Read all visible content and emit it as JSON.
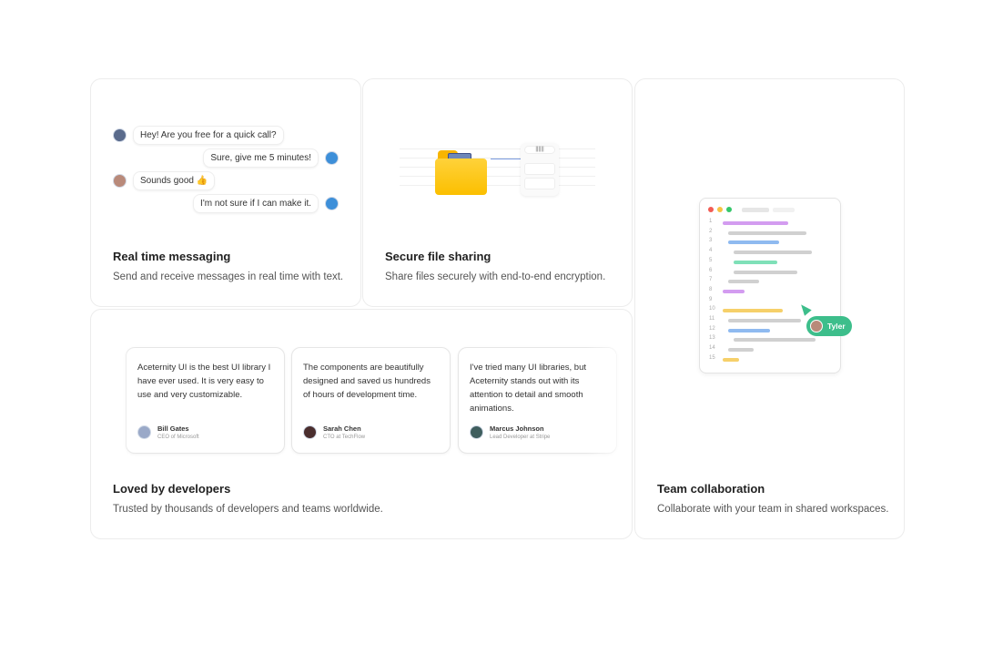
{
  "messaging": {
    "title": "Real time messaging",
    "description": "Send and receive messages in real time with text.",
    "messages": [
      {
        "text": "Hey! Are you free for a quick call?",
        "side": "left"
      },
      {
        "text": "Sure, give me 5 minutes!",
        "side": "right"
      },
      {
        "text": "Sounds good 👍",
        "side": "left"
      },
      {
        "text": "I'm not sure if I can make it.",
        "side": "right"
      }
    ]
  },
  "file_sharing": {
    "title": "Secure file sharing",
    "description": "Share files securely with end-to-end encryption.",
    "folder_color": "#FFC107"
  },
  "collaboration": {
    "title": "Team collaboration",
    "description": "Collaborate with your team in shared workspaces.",
    "line_numbers": [
      "1",
      "2",
      "3",
      "4",
      "5",
      "6",
      "7",
      "8",
      "9",
      "10",
      "11",
      "12",
      "13",
      "14",
      "15"
    ],
    "cursor_user": "Tyler",
    "cursor_color": "#3DBE8B"
  },
  "testimonials": {
    "title": "Loved by developers",
    "description": "Trusted by thousands of developers and teams worldwide.",
    "items": [
      {
        "quote": "Aceternity UI is the best UI library I have ever used. It is very easy to use and very customizable.",
        "name": "Bill Gates",
        "role": "CEO of Microsoft"
      },
      {
        "quote": "The components are beautifully designed and saved us hundreds of hours of development time.",
        "name": "Sarah Chen",
        "role": "CTO at TechFlow"
      },
      {
        "quote": "I've tried many UI libraries, but Aceternity stands out with its attention to detail and smooth animations.",
        "name": "Marcus Johnson",
        "role": "Lead Developer at Stripe"
      }
    ]
  }
}
